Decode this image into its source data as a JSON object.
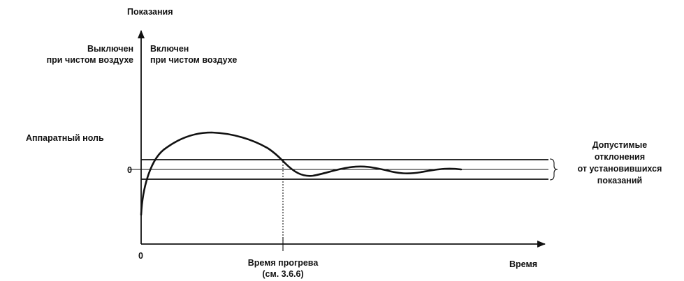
{
  "diagram": {
    "y_axis_label": "Показания",
    "x_axis_label": "Время",
    "origin_label": "0",
    "zero_level_label": "0",
    "off_label_line1": "Выключен",
    "off_label_line2": "при чистом воздухе",
    "on_label_line1": "Включен",
    "on_label_line2": "при чистом воздухе",
    "apparatus_zero_label": "Аппаратный ноль",
    "warmup_label_line1": "Время прогрева",
    "warmup_label_line2": "(см. 3.6.6)",
    "tolerance_label_line1": "Допустимые",
    "tolerance_label_line2": "отклонения",
    "tolerance_label_line3": "от установившихся",
    "tolerance_label_line4": "показаний"
  }
}
